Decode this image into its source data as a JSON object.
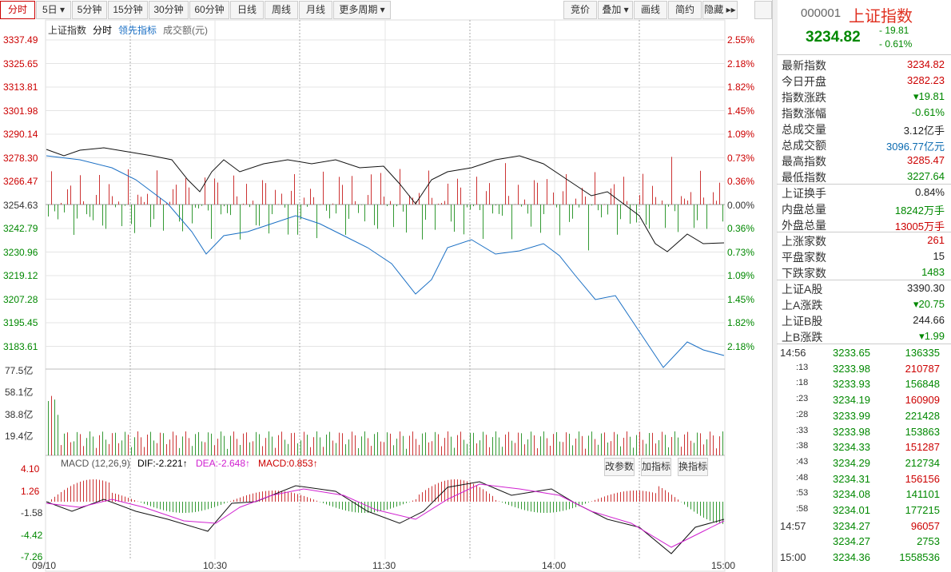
{
  "toolbar": {
    "left": [
      "分时",
      "5日 ▾",
      "5分钟",
      "15分钟",
      "30分钟",
      "60分钟",
      "日线",
      "周线",
      "月线",
      "更多周期 ▾"
    ],
    "right": [
      "竞价",
      "叠加 ▾",
      "画线",
      "简约",
      "隐藏 ▸▸"
    ]
  },
  "legend": [
    "上证指数",
    "分时",
    "领先指标",
    "成交额(元)"
  ],
  "price_axis": [
    "3337.49",
    "3325.65",
    "3313.81",
    "3301.98",
    "3290.14",
    "3278.30",
    "3266.47",
    "3254.63",
    "3242.79",
    "3230.96",
    "3219.12",
    "3207.28",
    "3195.45",
    "3183.61"
  ],
  "pct_axis": [
    "2.55%",
    "2.18%",
    "1.82%",
    "1.45%",
    "1.09%",
    "0.73%",
    "0.36%",
    "0.00%",
    "0.36%",
    "0.73%",
    "1.09%",
    "1.45%",
    "1.82%",
    "2.18%"
  ],
  "volume_axis": [
    "77.5亿",
    "58.1亿",
    "38.8亿",
    "19.4亿"
  ],
  "macd": {
    "header": [
      "MACD (12,26,9)",
      "DIF:-2.221↑",
      "DEA:-2.648↑",
      "MACD:0.853↑"
    ],
    "actions": [
      "改参数",
      "加指标",
      "换指标"
    ],
    "axis": [
      "4.10",
      "1.26",
      "-1.58",
      "-4.42",
      "-7.26"
    ]
  },
  "time_axis": [
    "09/10",
    "10:30",
    "11:30",
    "14:00",
    "15:00"
  ],
  "quote": {
    "code": "000001",
    "name": "上证指数",
    "price": "3234.82",
    "change": "- 19.81",
    "pct": "- 0.61%",
    "rows": [
      [
        "最新指数",
        "3234.82"
      ],
      [
        "今日开盘",
        "3282.23"
      ],
      [
        "指数涨跌",
        "▾19.81"
      ],
      [
        "指数涨幅",
        "-0.61%"
      ],
      [
        "总成交量",
        "3.12亿手"
      ],
      [
        "总成交额",
        "3096.77亿元"
      ],
      [
        "最高指数",
        "3285.47"
      ],
      [
        "最低指数",
        "3227.64"
      ],
      [
        "上证换手",
        "0.84%"
      ],
      [
        "内盘总量",
        "18242万手"
      ],
      [
        "外盘总量",
        "13005万手"
      ],
      [
        "上涨家数",
        "261"
      ],
      [
        "平盘家数",
        "15"
      ],
      [
        "下跌家数",
        "1483"
      ],
      [
        "上证A股",
        "3390.30"
      ],
      [
        "上A涨跌",
        "▾20.75"
      ],
      [
        "上证B股",
        "244.66"
      ],
      [
        "上B涨跌",
        "▾1.99"
      ]
    ],
    "row_colors": [
      "#c00",
      "#c00",
      "#080",
      "#080",
      "#222",
      "#0a6ab0",
      "#c00",
      "#080",
      "#222",
      "#080",
      "#c00",
      "#c00",
      "#222",
      "#080",
      "#222",
      "#080",
      "#222",
      "#080"
    ]
  },
  "trades": {
    "rows": [
      [
        "14:56",
        "3233.65",
        "136335"
      ],
      [
        ":13",
        "3233.98",
        "210787"
      ],
      [
        ":18",
        "3233.93",
        "156848"
      ],
      [
        ":23",
        "3234.19",
        "160909"
      ],
      [
        ":28",
        "3233.99",
        "221428"
      ],
      [
        ":33",
        "3233.98",
        "153863"
      ],
      [
        ":38",
        "3234.33",
        "151287"
      ],
      [
        ":43",
        "3234.29",
        "212734"
      ],
      [
        ":48",
        "3234.31",
        "156156"
      ],
      [
        ":53",
        "3234.08",
        "141101"
      ],
      [
        ":58",
        "3234.01",
        "177215"
      ],
      [
        "14:57",
        "3234.27",
        "96057"
      ],
      [
        "",
        "3234.27",
        "2753"
      ],
      [
        "15:00",
        "3234.36",
        "1558536"
      ]
    ],
    "volume_colors": [
      "#080",
      "#c00",
      "#080",
      "#c00",
      "#080",
      "#080",
      "#c00",
      "#080",
      "#c00",
      "#080",
      "#080",
      "#c00",
      "#080",
      "#080"
    ]
  }
}
